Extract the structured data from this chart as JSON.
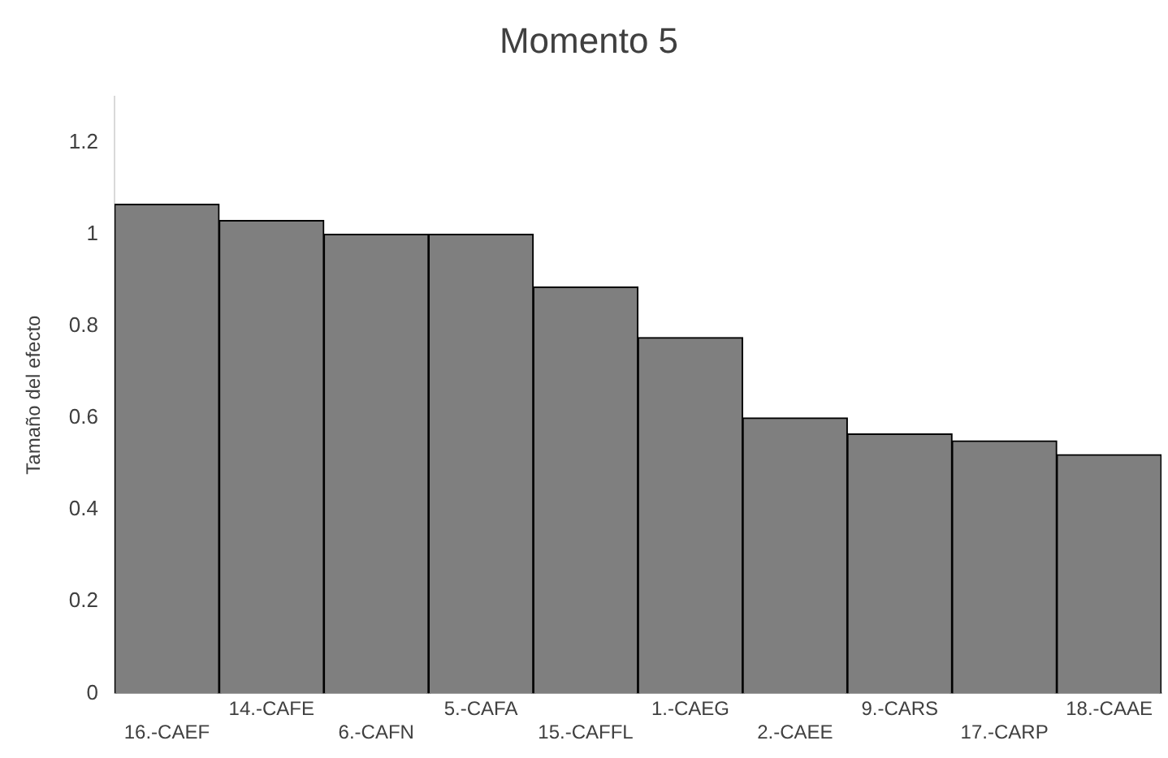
{
  "chart_data": {
    "type": "bar",
    "title": "Momento 5",
    "ylabel": "Tamaño del efecto",
    "categories": [
      "16.-CAEF",
      "14.-CAFE",
      "6.-CAFN",
      "5.-CAFA",
      "15.-CAFFL",
      "1.-CAEG",
      "2.-CAEE",
      "9.-CARS",
      "17.-CARP",
      "18.-CAAE"
    ],
    "values": [
      1.065,
      1.03,
      1.0,
      1.0,
      0.885,
      0.775,
      0.6,
      0.565,
      0.55,
      0.52
    ],
    "color": "#7f7f7f",
    "ylim": [
      0,
      1.3
    ],
    "yticks": [
      0,
      0.2,
      0.4,
      0.6,
      0.8,
      1,
      1.2
    ],
    "grid": false,
    "legend": false
  }
}
